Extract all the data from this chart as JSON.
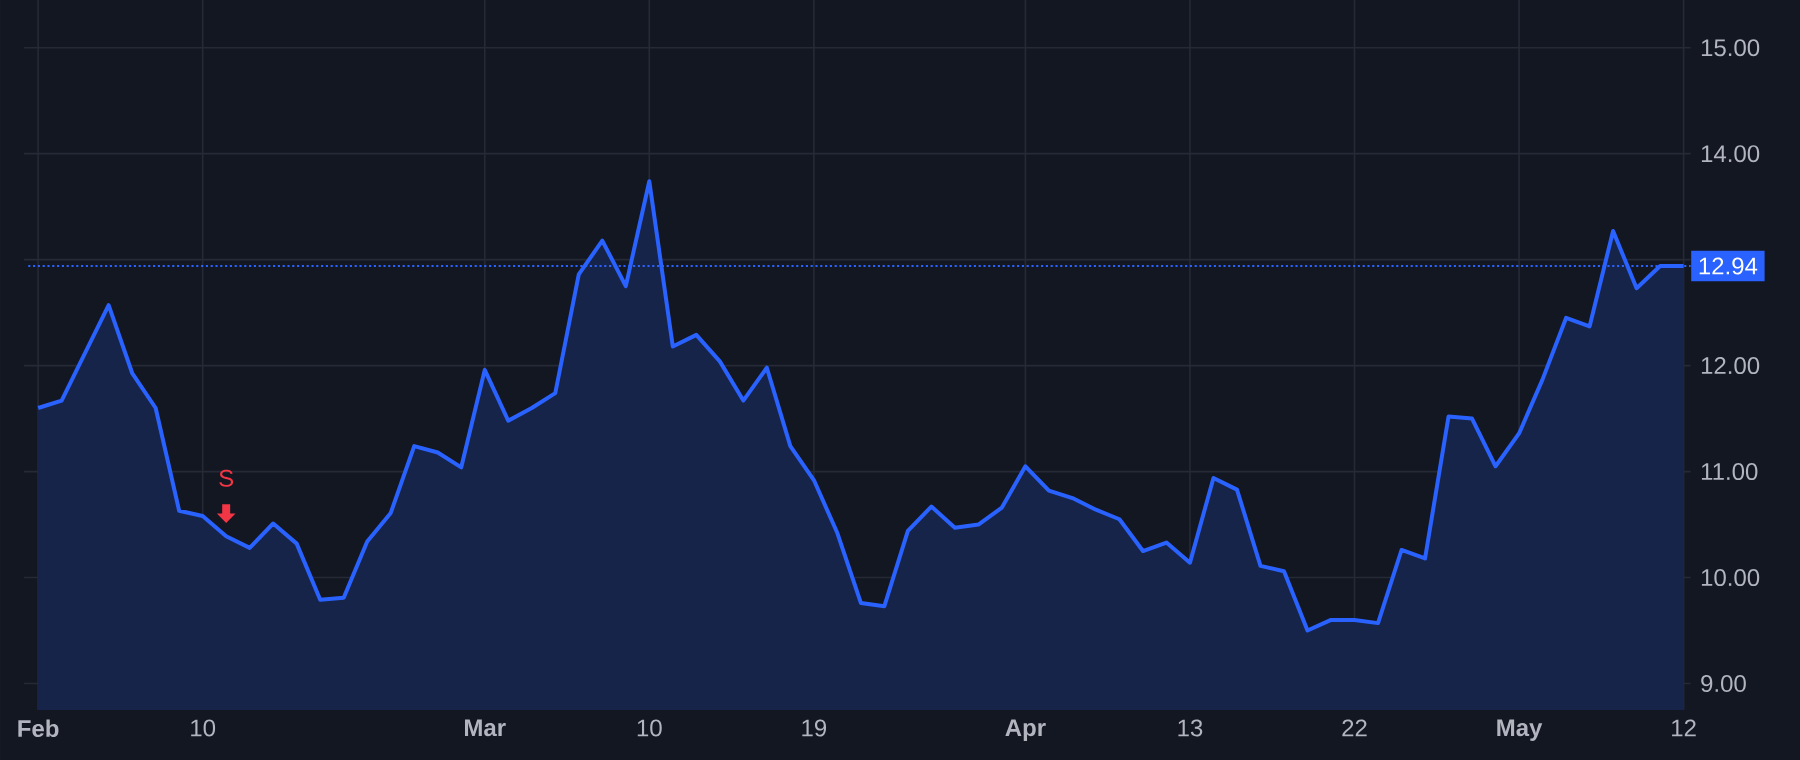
{
  "chart_data": {
    "type": "area",
    "categories": [
      "Feb",
      null,
      null,
      null,
      null,
      null,
      null,
      "10",
      null,
      null,
      null,
      null,
      null,
      null,
      null,
      null,
      null,
      null,
      null,
      "Mar",
      null,
      null,
      null,
      null,
      null,
      null,
      "10",
      null,
      null,
      null,
      null,
      null,
      null,
      "19",
      null,
      null,
      null,
      null,
      null,
      null,
      null,
      null,
      "Apr",
      null,
      null,
      null,
      null,
      null,
      null,
      "13",
      null,
      null,
      null,
      null,
      null,
      null,
      "22",
      null,
      null,
      null,
      null,
      null,
      null,
      "May",
      null,
      null,
      null,
      null,
      null,
      null,
      "12"
    ],
    "series": [
      {
        "color": "#2962ff",
        "values": [
          11.6,
          11.67,
          12.12,
          12.57,
          11.93,
          11.6,
          10.63,
          10.58,
          10.39,
          10.28,
          10.51,
          10.32,
          9.79,
          9.81,
          10.34,
          10.61,
          11.24,
          11.18,
          11.04,
          11.96,
          11.48,
          11.6,
          11.74,
          12.86,
          13.18,
          12.75,
          13.74,
          12.18,
          12.29,
          12.04,
          11.67,
          11.98,
          11.24,
          10.92,
          10.42,
          9.76,
          9.73,
          10.44,
          10.67,
          10.47,
          10.5,
          10.66,
          11.05,
          10.82,
          10.75,
          10.64,
          10.55,
          10.25,
          10.33,
          10.14,
          10.94,
          10.83,
          10.11,
          10.06,
          9.5,
          9.6,
          9.6,
          9.57,
          10.26,
          10.18,
          11.52,
          11.5,
          11.05,
          11.36,
          11.87,
          12.45,
          12.37,
          13.27,
          12.73,
          12.94,
          12.94
        ]
      }
    ],
    "ylim": [
      8.75,
      15.45
    ],
    "yticks": [
      {
        "value": 9,
        "label": "9.00"
      },
      {
        "value": 10,
        "label": "10.00"
      },
      {
        "value": 11,
        "label": "11.00"
      },
      {
        "value": 12,
        "label": "12.00"
      },
      {
        "value": 13,
        "label": null
      },
      {
        "value": 14,
        "label": "14.00"
      },
      {
        "value": 15,
        "label": "15.00"
      }
    ],
    "grid": true,
    "ref_lines": [
      {
        "axis": "y",
        "value": 12.94,
        "label": "12.94",
        "color": "#2962ff",
        "line_style": "dotted"
      }
    ],
    "annotations": [
      {
        "text": "S",
        "y": 10.39
      }
    ]
  }
}
